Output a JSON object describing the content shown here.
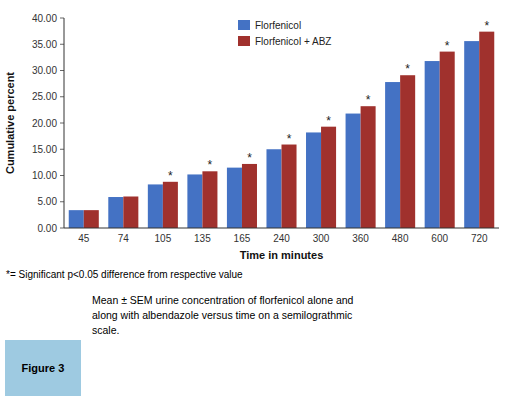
{
  "chart_data": {
    "type": "bar",
    "xlabel": "Time in minutes",
    "ylabel": "Cumulative percent",
    "categories": [
      "45",
      "74",
      "105",
      "135",
      "165",
      "240",
      "300",
      "360",
      "480",
      "600",
      "720"
    ],
    "series": [
      {
        "name": "Florfenicol",
        "color": "#4472C4",
        "values": [
          3.4,
          5.9,
          8.3,
          10.2,
          11.5,
          15.0,
          18.2,
          21.8,
          27.8,
          31.8,
          35.6
        ]
      },
      {
        "name": "Florfenicol + ABZ",
        "color": "#A0312D",
        "values": [
          3.4,
          6.0,
          8.8,
          10.8,
          12.2,
          15.9,
          19.3,
          23.2,
          29.1,
          33.6,
          37.4
        ]
      }
    ],
    "ylim": [
      0,
      40
    ],
    "yticks": [
      {
        "value": 0,
        "label": "0.00"
      },
      {
        "value": 5.0,
        "label": "5.00"
      },
      {
        "value": 10.0,
        "label": "10.00"
      },
      {
        "value": 15.0,
        "label": "15.00"
      },
      {
        "value": 20.0,
        "label": "20.00"
      },
      {
        "value": 25.0,
        "label": "25.00"
      },
      {
        "value": 30.0,
        "label": "30.00"
      },
      {
        "value": 35.0,
        "label": "35.00"
      },
      {
        "value": 40.0,
        "label": "40.00"
      }
    ],
    "grid": false,
    "legend": "upper center",
    "annotations": [
      {
        "text": "*",
        "category": "105",
        "series": "Florfenicol + ABZ"
      },
      {
        "text": "*",
        "category": "135",
        "series": "Florfenicol + ABZ"
      },
      {
        "text": "*",
        "category": "165",
        "series": "Florfenicol + ABZ"
      },
      {
        "text": "*",
        "category": "240",
        "series": "Florfenicol + ABZ"
      },
      {
        "text": "*",
        "category": "300",
        "series": "Florfenicol + ABZ"
      },
      {
        "text": "*",
        "category": "360",
        "series": "Florfenicol + ABZ"
      },
      {
        "text": "*",
        "category": "480",
        "series": "Florfenicol + ABZ"
      },
      {
        "text": "*",
        "category": "600",
        "series": "Florfenicol + ABZ"
      },
      {
        "text": "*",
        "category": "720",
        "series": "Florfenicol + ABZ"
      }
    ],
    "footnote": "*= Significant p<0.05 difference from respective value",
    "figure_label": "Figure 3",
    "caption": "Mean ± SEM urine concentration of florfenicol alone and\nalong with albendazole versus time on a semilograthmic\nscale."
  }
}
